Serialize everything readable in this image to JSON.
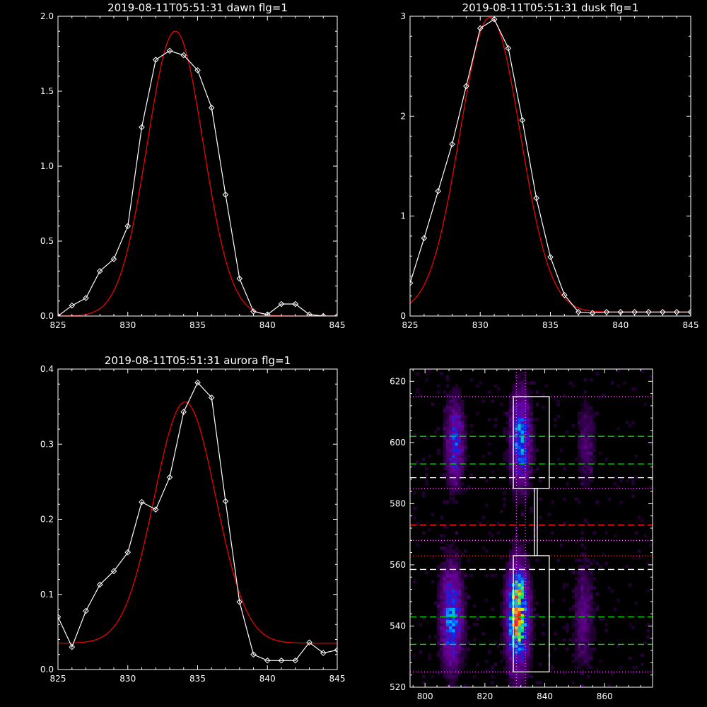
{
  "colors": {
    "background": "#000000",
    "axes": "#ffffff",
    "data_line": "#ffffff",
    "fit_line": "#ff0000",
    "guide_green": "#00dd00",
    "guide_red": "#ff2020",
    "guide_white": "#ffffff",
    "guide_magenta": "#ff66ff"
  },
  "chart_data": [
    {
      "type": "line",
      "title": "2019-08-11T05:51:31 dawn flg=1",
      "xlim": [
        825,
        845
      ],
      "ylim": [
        0,
        2.0
      ],
      "xticks": [
        "825",
        "830",
        "835",
        "840",
        "845"
      ],
      "yticks": [
        "0.0",
        "0.5",
        "1.0",
        "1.5",
        "2.0"
      ],
      "series": [
        {
          "role": "data",
          "x": [
            825,
            826,
            827,
            828,
            829,
            830,
            831,
            832,
            833,
            834,
            835,
            836,
            837,
            838,
            839,
            840,
            841,
            842,
            843,
            844,
            845
          ],
          "values": [
            0.0,
            0.07,
            0.12,
            0.3,
            0.38,
            0.6,
            1.26,
            1.71,
            1.77,
            1.74,
            1.64,
            1.39,
            0.81,
            0.25,
            0.03,
            0.01,
            0.08,
            0.08,
            0.01,
            0.0,
            0.0
          ]
        },
        {
          "role": "fit",
          "model": "gaussian",
          "amplitude": 1.9,
          "center": 833.4,
          "sigma": 2.0,
          "baseline": 0.0
        }
      ]
    },
    {
      "type": "line",
      "title": "2019-08-11T05:51:31 dusk flg=1",
      "xlim": [
        825,
        845
      ],
      "ylim": [
        0,
        3
      ],
      "xticks": [
        "825",
        "830",
        "835",
        "840",
        "845"
      ],
      "yticks": [
        "0",
        "1",
        "2",
        "3"
      ],
      "series": [
        {
          "role": "data",
          "x": [
            825,
            826,
            827,
            828,
            829,
            830,
            831,
            832,
            833,
            834,
            835,
            836,
            837,
            838,
            839,
            840,
            841,
            842,
            843,
            844,
            845
          ],
          "values": [
            0.33,
            0.78,
            1.25,
            1.72,
            2.3,
            2.88,
            2.97,
            2.68,
            1.96,
            1.18,
            0.59,
            0.21,
            0.04,
            0.03,
            0.04,
            0.04,
            0.04,
            0.04,
            0.04,
            0.04,
            0.04
          ]
        },
        {
          "role": "fit",
          "model": "gaussian",
          "amplitude": 2.95,
          "center": 830.7,
          "sigma": 2.15,
          "baseline": 0.04
        }
      ]
    },
    {
      "type": "line",
      "title": "2019-08-11T05:51:31 aurora flg=1",
      "xlim": [
        825,
        845
      ],
      "ylim": [
        0,
        0.4
      ],
      "xticks": [
        "825",
        "830",
        "835",
        "840",
        "845"
      ],
      "yticks": [
        "0.0",
        "0.1",
        "0.2",
        "0.3",
        "0.4"
      ],
      "series": [
        {
          "role": "data",
          "x": [
            825,
            826,
            827,
            828,
            829,
            830,
            831,
            832,
            833,
            834,
            835,
            836,
            837,
            838,
            839,
            840,
            841,
            842,
            843,
            844,
            845
          ],
          "values": [
            0.07,
            0.03,
            0.078,
            0.113,
            0.131,
            0.156,
            0.223,
            0.213,
            0.256,
            0.343,
            0.382,
            0.362,
            0.224,
            0.09,
            0.02,
            0.012,
            0.012,
            0.012,
            0.036,
            0.022,
            0.026
          ]
        },
        {
          "role": "fit",
          "model": "gaussian",
          "amplitude": 0.321,
          "center": 834.1,
          "sigma": 2.2,
          "baseline": 0.035
        }
      ]
    },
    {
      "type": "heatmap",
      "xlim": [
        795,
        876
      ],
      "ylim": [
        520,
        624
      ],
      "xticks": [
        "800",
        "820",
        "840",
        "860"
      ],
      "yticks": [
        "520",
        "540",
        "560",
        "580",
        "600",
        "620"
      ],
      "blobs": [
        {
          "x": 810,
          "y": 600,
          "sx": 2.0,
          "sy": 9,
          "amp": 0.42
        },
        {
          "x": 832,
          "y": 601,
          "sx": 2.2,
          "sy": 10,
          "amp": 0.55
        },
        {
          "x": 809,
          "y": 543,
          "sx": 2.4,
          "sy": 11,
          "amp": 0.52
        },
        {
          "x": 831,
          "y": 543,
          "sx": 2.4,
          "sy": 11,
          "amp": 0.8
        },
        {
          "x": 831,
          "y": 552,
          "sx": 1.5,
          "sy": 3,
          "amp": 0.22
        },
        {
          "x": 831,
          "y": 541,
          "sx": 1.0,
          "sy": 1.5,
          "amp": 0.25
        },
        {
          "x": 854,
          "y": 600,
          "sx": 2.0,
          "sy": 9,
          "amp": 0.16
        },
        {
          "x": 853,
          "y": 543,
          "sx": 2.2,
          "sy": 11,
          "amp": 0.2
        }
      ],
      "boxes": [
        {
          "x": [
            829.5,
            841.5
          ],
          "y": [
            585,
            615
          ]
        },
        {
          "x": [
            829.5,
            841.5
          ],
          "y": [
            525,
            563
          ]
        },
        {
          "x": [
            836.5,
            837.5
          ],
          "y": [
            563,
            585
          ]
        }
      ],
      "hlines": [
        {
          "y": 615,
          "color": "guide_magenta",
          "style": "dotted"
        },
        {
          "y": 602,
          "color": "guide_green",
          "style": "dashed"
        },
        {
          "y": 593,
          "color": "guide_green",
          "style": "dashed"
        },
        {
          "y": 588.5,
          "color": "guide_white",
          "style": "dashed"
        },
        {
          "y": 585,
          "color": "guide_magenta",
          "style": "dotted"
        },
        {
          "y": 573,
          "color": "guide_red",
          "style": "dashed"
        },
        {
          "y": 568,
          "color": "guide_magenta",
          "style": "dotted"
        },
        {
          "y": 563,
          "color": "guide_red",
          "style": "dotted"
        },
        {
          "y": 558.5,
          "color": "guide_white",
          "style": "dashed"
        },
        {
          "y": 543,
          "color": "guide_green",
          "style": "dashed"
        },
        {
          "y": 534,
          "color": "guide_green",
          "style": "dashed"
        },
        {
          "y": 525,
          "color": "guide_magenta",
          "style": "dotted"
        }
      ],
      "vlines": [
        {
          "x": 830.5,
          "color": "guide_magenta",
          "style": "dotted"
        },
        {
          "x": 833.5,
          "color": "guide_magenta",
          "style": "dotted"
        }
      ]
    }
  ]
}
